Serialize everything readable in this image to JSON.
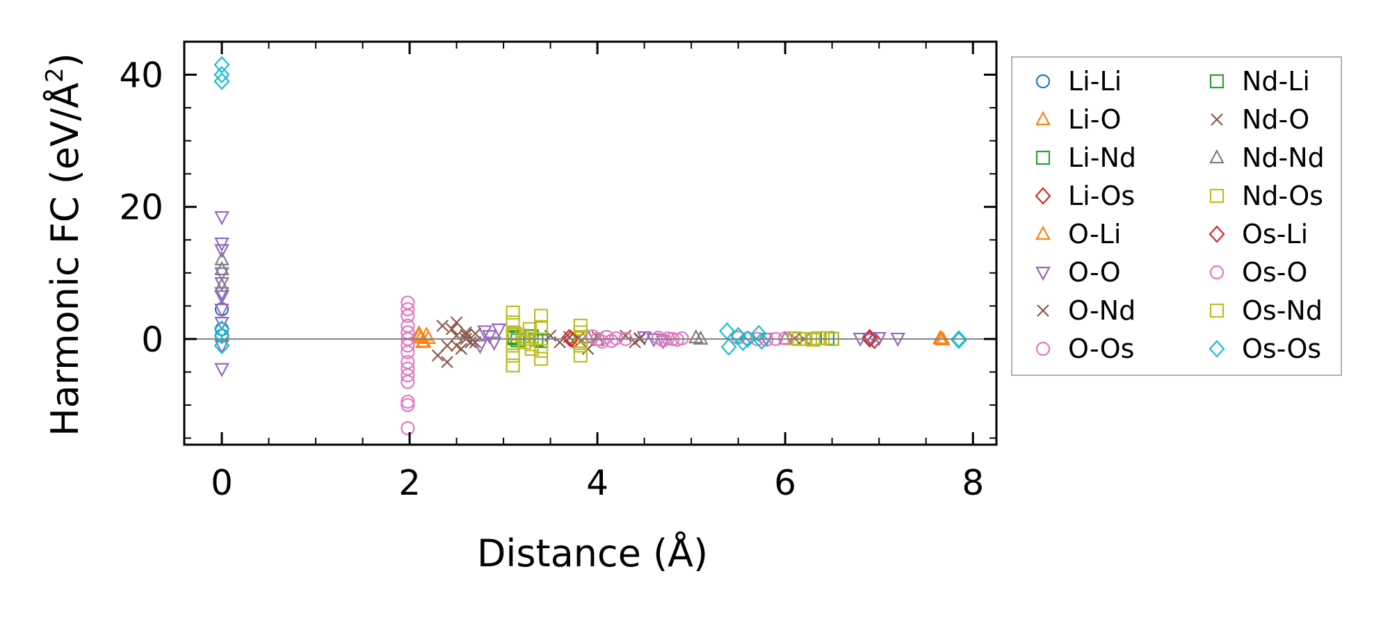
{
  "chart_data": {
    "type": "scatter",
    "xlabel": "Distance (Å)",
    "ylabel_main": "Harmonic FC (eV/Å",
    "ylabel_sup": "2",
    "ylabel_close": ")",
    "xlim": [
      -0.4,
      8.25
    ],
    "ylim": [
      -16,
      45
    ],
    "xticks": [
      0,
      2,
      4,
      6,
      8
    ],
    "yticks": [
      0,
      20,
      40
    ],
    "zero_line": true,
    "grid": false,
    "legend_placement": "outside-right",
    "series": [
      {
        "name": "Li-Li",
        "marker": "circle",
        "color": "#1f77b4",
        "x": [
          0,
          0,
          0
        ],
        "y": [
          4.5,
          1.5,
          0.5
        ]
      },
      {
        "name": "Li-O",
        "marker": "triangle-up",
        "color": "#ff7f0e",
        "x": [
          2.1,
          2.12,
          2.15,
          2.18,
          7.65,
          7.68
        ],
        "y": [
          0.8,
          0.2,
          -0.4,
          0.6,
          0.1,
          -0.1
        ]
      },
      {
        "name": "Li-Nd",
        "marker": "square",
        "color": "#2ca02c",
        "x": [
          3.1,
          3.15,
          3.3,
          3.4,
          6.45,
          6.5
        ],
        "y": [
          0.3,
          -0.2,
          0.4,
          -0.3,
          0.1,
          0
        ]
      },
      {
        "name": "Li-Os",
        "marker": "diamond",
        "color": "#d62728",
        "x": [
          3.7,
          3.75,
          6.9,
          6.95
        ],
        "y": [
          0.2,
          -0.2,
          0.2,
          -0.2
        ]
      },
      {
        "name": "O-Li",
        "marker": "triangle-up",
        "color": "#ff7f0e",
        "x": [
          2.1,
          2.14,
          2.2,
          7.66
        ],
        "y": [
          0.5,
          -0.5,
          0.1,
          0
        ]
      },
      {
        "name": "O-O",
        "marker": "triangle-down",
        "color": "#9467bd",
        "x": [
          0,
          0,
          0,
          0,
          0,
          0,
          0,
          0,
          0,
          0,
          0,
          2.8,
          2.85,
          2.9,
          2.95,
          2.75,
          4.5,
          4.6,
          4.7,
          5.8,
          6.8,
          6.9,
          7.0,
          7.2
        ],
        "y": [
          18.5,
          14.5,
          13.5,
          10,
          8.5,
          7,
          6.5,
          4.5,
          2.5,
          -1,
          -4.5,
          1.2,
          0.5,
          -0.5,
          1.5,
          -1,
          0.3,
          0,
          -0.3,
          0.1,
          0.1,
          0,
          0.2,
          0.1
        ]
      },
      {
        "name": "O-Nd",
        "marker": "x",
        "color": "#8c564b",
        "x": [
          2.3,
          2.35,
          2.4,
          2.45,
          2.5,
          2.55,
          2.6,
          2.65,
          2.7,
          2.4,
          2.5,
          2.6,
          3.5,
          3.6,
          3.7,
          3.9,
          4.0,
          4.3,
          4.4,
          4.45,
          6.1,
          6.2
        ],
        "y": [
          -2.5,
          2,
          -1,
          1.5,
          0.5,
          -1.5,
          1,
          -0.5,
          0.8,
          -3.5,
          2.5,
          0,
          0.5,
          -0.5,
          0.3,
          -1.5,
          0.3,
          0.5,
          -0.5,
          0,
          0.1,
          0
        ]
      },
      {
        "name": "O-Os",
        "marker": "circle",
        "color": "#e377c2",
        "x": [
          1.98,
          1.98,
          1.98,
          1.98,
          1.98,
          1.98,
          1.98,
          1.98,
          1.98,
          1.98,
          1.98,
          1.98,
          1.98,
          1.98,
          1.98
        ],
        "y": [
          5.5,
          4.5,
          3.5,
          2,
          1,
          0,
          -1,
          -2,
          -3.5,
          -4.5,
          -5.5,
          -6.5,
          -9.5,
          -10,
          -13.5
        ]
      },
      {
        "name": "Nd-Li",
        "marker": "square",
        "color": "#2ca02c",
        "x": [
          3.12,
          3.35
        ],
        "y": [
          0.1,
          -0.1
        ]
      },
      {
        "name": "Nd-O",
        "marker": "x",
        "color": "#8c564b",
        "x": [
          2.5,
          2.6,
          2.7,
          3.8,
          4.45
        ],
        "y": [
          -1,
          0.6,
          -0.5,
          0.2,
          0.1
        ]
      },
      {
        "name": "Nd-Nd",
        "marker": "triangle-up",
        "color": "#7f7f7f",
        "x": [
          0,
          0,
          0,
          3.9,
          4.0,
          5.05,
          5.1,
          6.0
        ],
        "y": [
          12,
          10.5,
          8,
          0.2,
          -0.2,
          0.2,
          0,
          0
        ]
      },
      {
        "name": "Nd-Os",
        "marker": "square",
        "color": "#bcbd22",
        "x": [
          3.1,
          3.1,
          3.1,
          3.1,
          3.1,
          3.1,
          3.2,
          3.22,
          3.25,
          3.28,
          3.3,
          3.4,
          3.4,
          3.4,
          3.4,
          3.82,
          3.82,
          3.82,
          3.82,
          3.82,
          3.82,
          6.1,
          6.2,
          6.3,
          6.4,
          6.5
        ],
        "y": [
          4,
          2.5,
          1,
          -1,
          -2.5,
          -4,
          0.5,
          -0.5,
          0,
          1.5,
          -1.5,
          3.5,
          1.8,
          -1.8,
          -3,
          2,
          1,
          0.3,
          -0.3,
          -1,
          -2.5,
          0.1,
          0,
          -0.1,
          0.1,
          0
        ]
      },
      {
        "name": "Os-Li",
        "marker": "diamond",
        "color": "#d62728",
        "x": [
          6.9,
          3.72
        ],
        "y": [
          0,
          0
        ]
      },
      {
        "name": "Os-O",
        "marker": "circle",
        "color": "#e377c2",
        "x": [
          3.95,
          4.0,
          4.05,
          4.1,
          4.15,
          4.2,
          4.3,
          4.65,
          4.7,
          4.75,
          4.8,
          4.85,
          4.9,
          5.5,
          5.6,
          5.7,
          5.8,
          5.9,
          6.0
        ],
        "y": [
          0.4,
          0,
          -0.4,
          0.3,
          -0.3,
          0.1,
          0,
          0.2,
          -0.2,
          0.1,
          0,
          -0.1,
          0.1,
          0.2,
          0.1,
          0,
          -0.1,
          0,
          0.1
        ]
      },
      {
        "name": "Os-Nd",
        "marker": "square",
        "color": "#bcbd22",
        "x": [
          3.12,
          3.3,
          6.15,
          6.35
        ],
        "y": [
          0.8,
          -0.8,
          0,
          0.1
        ]
      },
      {
        "name": "Os-Os",
        "marker": "diamond",
        "color": "#17becf",
        "x": [
          0,
          0,
          0,
          0,
          0,
          0,
          5.38,
          5.4,
          5.5,
          5.55,
          5.6,
          5.72,
          5.75,
          7.85,
          7.85
        ],
        "y": [
          41.5,
          40,
          39,
          1.5,
          0.5,
          -1,
          1.2,
          -1.2,
          0.5,
          -0.5,
          0,
          0.8,
          -0.3,
          0,
          -0.2
        ]
      }
    ]
  }
}
